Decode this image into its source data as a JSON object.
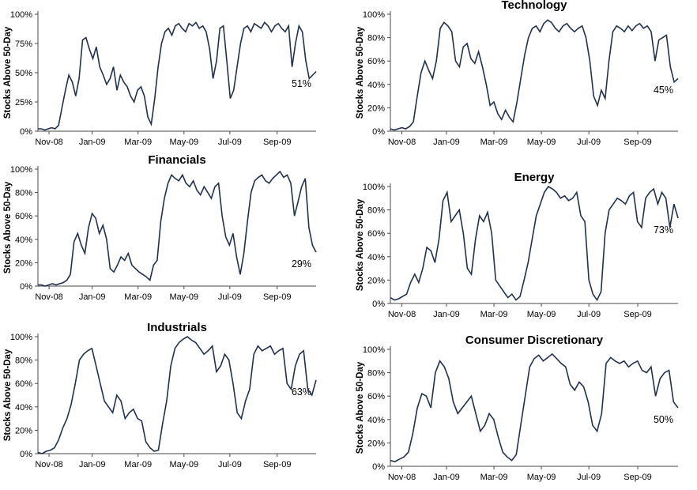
{
  "style": {
    "background": "#ffffff",
    "line_color": "#1F3150",
    "axis_color": "#4a4a4a",
    "text_color": "#000000"
  },
  "chart_data": [
    {
      "type": "line",
      "title": "",
      "ylabel": "Stocks Above 50-Day",
      "ylim": [
        0,
        100
      ],
      "ytick_labels": [
        "0%",
        "25%",
        "50%",
        "75%",
        "100%"
      ],
      "ytick_values": [
        0,
        25,
        50,
        75,
        100
      ],
      "xticks": [
        "Nov-08",
        "Jan-09",
        "Mar-09",
        "May-09",
        "Jul-09",
        "Sep-09"
      ],
      "xtick_pos": [
        0.04,
        0.195,
        0.36,
        0.525,
        0.69,
        0.86
      ],
      "end_label": "51%",
      "end_value": 51,
      "grid": false,
      "legend": "none",
      "values": [
        2,
        2,
        1,
        2,
        3,
        2,
        5,
        20,
        35,
        48,
        42,
        30,
        45,
        78,
        80,
        70,
        62,
        72,
        55,
        48,
        40,
        45,
        55,
        35,
        48,
        42,
        38,
        30,
        25,
        35,
        38,
        30,
        12,
        6,
        28,
        55,
        75,
        85,
        88,
        82,
        90,
        92,
        88,
        85,
        92,
        90,
        93,
        88,
        90,
        85,
        70,
        45,
        60,
        88,
        90,
        60,
        28,
        35,
        55,
        75,
        88,
        90,
        85,
        92,
        90,
        88,
        93,
        90,
        85,
        90,
        92,
        88,
        85,
        90,
        55,
        75,
        90,
        85,
        60,
        45,
        48,
        51
      ]
    },
    {
      "type": "line",
      "title": "Technology",
      "ylabel": "Stocks Above 50-Day",
      "ylim": [
        0,
        100
      ],
      "ytick_labels": [
        "0%",
        "20%",
        "40%",
        "60%",
        "80%",
        "100%"
      ],
      "ytick_values": [
        0,
        20,
        40,
        60,
        80,
        100
      ],
      "xticks": [
        "Nov-08",
        "Jan-09",
        "Mar-09",
        "May-09",
        "Jul-09",
        "Sep-09"
      ],
      "xtick_pos": [
        0.04,
        0.195,
        0.36,
        0.525,
        0.69,
        0.86
      ],
      "end_label": "45%",
      "end_value": 45,
      "grid": false,
      "legend": "none",
      "values": [
        2,
        1,
        2,
        3,
        2,
        4,
        8,
        30,
        50,
        60,
        52,
        45,
        60,
        88,
        93,
        90,
        85,
        60,
        55,
        72,
        75,
        62,
        58,
        68,
        55,
        40,
        22,
        25,
        15,
        10,
        18,
        12,
        8,
        25,
        45,
        65,
        80,
        88,
        90,
        85,
        92,
        95,
        93,
        88,
        85,
        90,
        92,
        88,
        85,
        88,
        90,
        80,
        60,
        30,
        22,
        35,
        28,
        60,
        85,
        90,
        88,
        85,
        90,
        86,
        90,
        92,
        88,
        90,
        85,
        60,
        78,
        80,
        82,
        55,
        42,
        45
      ]
    },
    {
      "type": "line",
      "title": "Financials",
      "ylabel": "Stocks Above 50-Day",
      "ylim": [
        0,
        100
      ],
      "ytick_labels": [
        "0%",
        "20%",
        "40%",
        "60%",
        "80%",
        "100%"
      ],
      "ytick_values": [
        0,
        20,
        40,
        60,
        80,
        100
      ],
      "xticks": [
        "Nov-08",
        "Jan-09",
        "Mar-09",
        "May-09",
        "Jul-09",
        "Sep-09"
      ],
      "xtick_pos": [
        0.04,
        0.195,
        0.36,
        0.525,
        0.69,
        0.86
      ],
      "end_label": "29%",
      "end_value": 29,
      "grid": false,
      "legend": "none",
      "values": [
        1,
        1,
        0,
        1,
        2,
        1,
        2,
        3,
        5,
        10,
        38,
        45,
        35,
        28,
        50,
        62,
        58,
        45,
        52,
        40,
        15,
        12,
        18,
        25,
        22,
        28,
        18,
        15,
        12,
        10,
        8,
        5,
        18,
        22,
        55,
        75,
        88,
        95,
        92,
        90,
        95,
        88,
        85,
        90,
        82,
        78,
        85,
        80,
        75,
        85,
        88,
        60,
        42,
        35,
        45,
        25,
        10,
        28,
        55,
        80,
        90,
        93,
        95,
        90,
        88,
        92,
        95,
        98,
        93,
        95,
        88,
        60,
        72,
        85,
        92,
        50,
        35,
        29
      ]
    },
    {
      "type": "line",
      "title": "Energy",
      "ylabel": "Stocks Above 50-Day",
      "ylim": [
        0,
        100
      ],
      "ytick_labels": [
        "0%",
        "20%",
        "40%",
        "60%",
        "80%",
        "100%"
      ],
      "ytick_values": [
        0,
        20,
        40,
        60,
        80,
        100
      ],
      "xticks": [
        "Nov-08",
        "Jan-09",
        "Mar-09",
        "May-09",
        "Jul-09",
        "Sep-09"
      ],
      "xtick_pos": [
        0.04,
        0.195,
        0.36,
        0.525,
        0.69,
        0.86
      ],
      "end_label": "73%",
      "end_value": 73,
      "grid": false,
      "legend": "none",
      "values": [
        5,
        3,
        4,
        6,
        8,
        18,
        25,
        18,
        30,
        48,
        45,
        35,
        55,
        88,
        95,
        70,
        75,
        80,
        60,
        30,
        25,
        55,
        75,
        70,
        78,
        60,
        20,
        15,
        10,
        5,
        8,
        3,
        6,
        20,
        35,
        55,
        75,
        85,
        95,
        100,
        98,
        95,
        90,
        92,
        88,
        90,
        95,
        75,
        70,
        20,
        8,
        3,
        10,
        60,
        80,
        85,
        90,
        88,
        85,
        92,
        95,
        70,
        65,
        90,
        95,
        98,
        85,
        95,
        90,
        65,
        85,
        73
      ]
    },
    {
      "type": "line",
      "title": "Industrials",
      "ylabel": "Stocks Above 50-Day",
      "ylim": [
        0,
        100
      ],
      "ytick_labels": [
        "0%",
        "20%",
        "40%",
        "60%",
        "80%",
        "100%"
      ],
      "ytick_values": [
        0,
        20,
        40,
        60,
        80,
        100
      ],
      "xticks": [
        "Nov-08",
        "Jan-09",
        "Mar-09",
        "May-09",
        "Jul-09",
        "Sep-09"
      ],
      "xtick_pos": [
        0.04,
        0.195,
        0.36,
        0.525,
        0.69,
        0.86
      ],
      "end_label": "63%",
      "end_value": 63,
      "grid": false,
      "legend": "none",
      "values": [
        1,
        0,
        2,
        3,
        5,
        12,
        22,
        30,
        42,
        60,
        80,
        85,
        88,
        90,
        75,
        60,
        45,
        40,
        35,
        50,
        45,
        30,
        35,
        38,
        30,
        28,
        10,
        5,
        2,
        3,
        25,
        45,
        75,
        90,
        95,
        98,
        100,
        97,
        95,
        90,
        85,
        88,
        92,
        70,
        75,
        85,
        80,
        60,
        35,
        30,
        45,
        55,
        85,
        92,
        88,
        90,
        92,
        85,
        88,
        90,
        60,
        55,
        75,
        85,
        88,
        55,
        50,
        63
      ]
    },
    {
      "type": "line",
      "title": "Consumer Discretionary",
      "ylabel": "Stocks Above 50-Day",
      "ylim": [
        0,
        100
      ],
      "ytick_labels": [
        "0%",
        "20%",
        "40%",
        "60%",
        "80%",
        "100%"
      ],
      "ytick_values": [
        0,
        20,
        40,
        60,
        80,
        100
      ],
      "xticks": [
        "Nov-08",
        "Jan-09",
        "Mar-09",
        "May-09",
        "Jul-09",
        "Sep-09"
      ],
      "xtick_pos": [
        0.04,
        0.195,
        0.36,
        0.525,
        0.69,
        0.86
      ],
      "end_label": "50%",
      "end_value": 50,
      "grid": false,
      "legend": "none",
      "values": [
        5,
        4,
        6,
        8,
        12,
        28,
        50,
        62,
        60,
        50,
        80,
        90,
        85,
        75,
        55,
        45,
        50,
        55,
        60,
        45,
        30,
        35,
        45,
        40,
        25,
        12,
        8,
        5,
        10,
        35,
        60,
        85,
        92,
        95,
        90,
        93,
        96,
        92,
        88,
        85,
        70,
        65,
        72,
        68,
        55,
        35,
        30,
        45,
        88,
        93,
        90,
        88,
        90,
        85,
        88,
        90,
        82,
        80,
        85,
        60,
        75,
        80,
        82,
        55,
        50
      ]
    }
  ]
}
